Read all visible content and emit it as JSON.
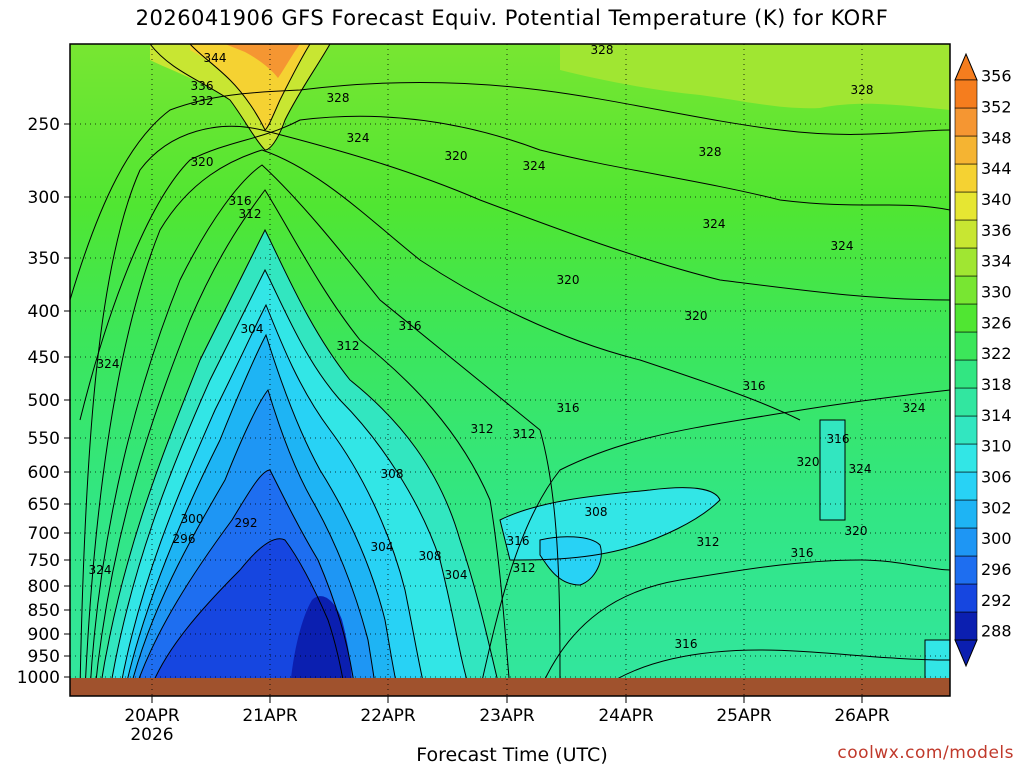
{
  "title": "2026041906 GFS Forecast Equiv. Potential Temperature (K) for KORF",
  "xlabel": "Forecast Time (UTC)",
  "credit": "coolwx.com/models",
  "colors": {
    "ground": "#a0522d",
    "contour": "#000000"
  },
  "chart_data": {
    "type": "heatmap",
    "title": "2026041906 GFS Forecast Equiv. Potential Temperature (K) for KORF",
    "xlabel": "Forecast Time (UTC)",
    "ylabel": "",
    "x_ticks": [
      "20APR",
      "21APR",
      "22APR",
      "23APR",
      "24APR",
      "25APR",
      "26APR"
    ],
    "x_year_label": "2026",
    "y_ticks": [
      250,
      300,
      350,
      400,
      450,
      500,
      550,
      600,
      650,
      700,
      750,
      800,
      850,
      900,
      950,
      1000
    ],
    "y_axis": "pressure (hPa), inverted",
    "colorbar": {
      "unit": "K",
      "levels": [
        288,
        292,
        296,
        300,
        302,
        306,
        310,
        314,
        318,
        322,
        326,
        330,
        334,
        336,
        340,
        344,
        348,
        352,
        356
      ],
      "colors": [
        "#0b1fb0",
        "#1646e0",
        "#1e6ef0",
        "#1e96f4",
        "#1eb4f4",
        "#28d2f5",
        "#32e6e6",
        "#32e6c0",
        "#32e6a0",
        "#32e682",
        "#3ce65a",
        "#50e632",
        "#78e632",
        "#a0e632",
        "#c8e632",
        "#e6e632",
        "#f5d232",
        "#f5b432",
        "#f59632",
        "#f57d1e"
      ]
    },
    "contour_labels": [
      {
        "text": "344"
      },
      {
        "text": "336"
      },
      {
        "text": "332"
      },
      {
        "text": "328"
      },
      {
        "text": "328"
      },
      {
        "text": "328"
      },
      {
        "text": "328"
      },
      {
        "text": "324"
      },
      {
        "text": "320"
      },
      {
        "text": "324"
      },
      {
        "text": "320"
      },
      {
        "text": "316"
      },
      {
        "text": "312"
      },
      {
        "text": "324"
      },
      {
        "text": "324"
      },
      {
        "text": "320"
      },
      {
        "text": "304"
      },
      {
        "text": "316"
      },
      {
        "text": "312"
      },
      {
        "text": "320"
      },
      {
        "text": "324"
      },
      {
        "text": "316"
      },
      {
        "text": "316"
      },
      {
        "text": "312"
      },
      {
        "text": "312"
      },
      {
        "text": "308"
      },
      {
        "text": "316"
      },
      {
        "text": "300"
      },
      {
        "text": "292"
      },
      {
        "text": "296"
      },
      {
        "text": "324"
      },
      {
        "text": "320"
      },
      {
        "text": "324"
      },
      {
        "text": "308"
      },
      {
        "text": "308"
      },
      {
        "text": "304"
      },
      {
        "text": "304"
      },
      {
        "text": "316"
      },
      {
        "text": "312"
      },
      {
        "text": "312"
      },
      {
        "text": "316"
      },
      {
        "text": "320"
      },
      {
        "text": "316"
      },
      {
        "text": "324"
      }
    ]
  }
}
